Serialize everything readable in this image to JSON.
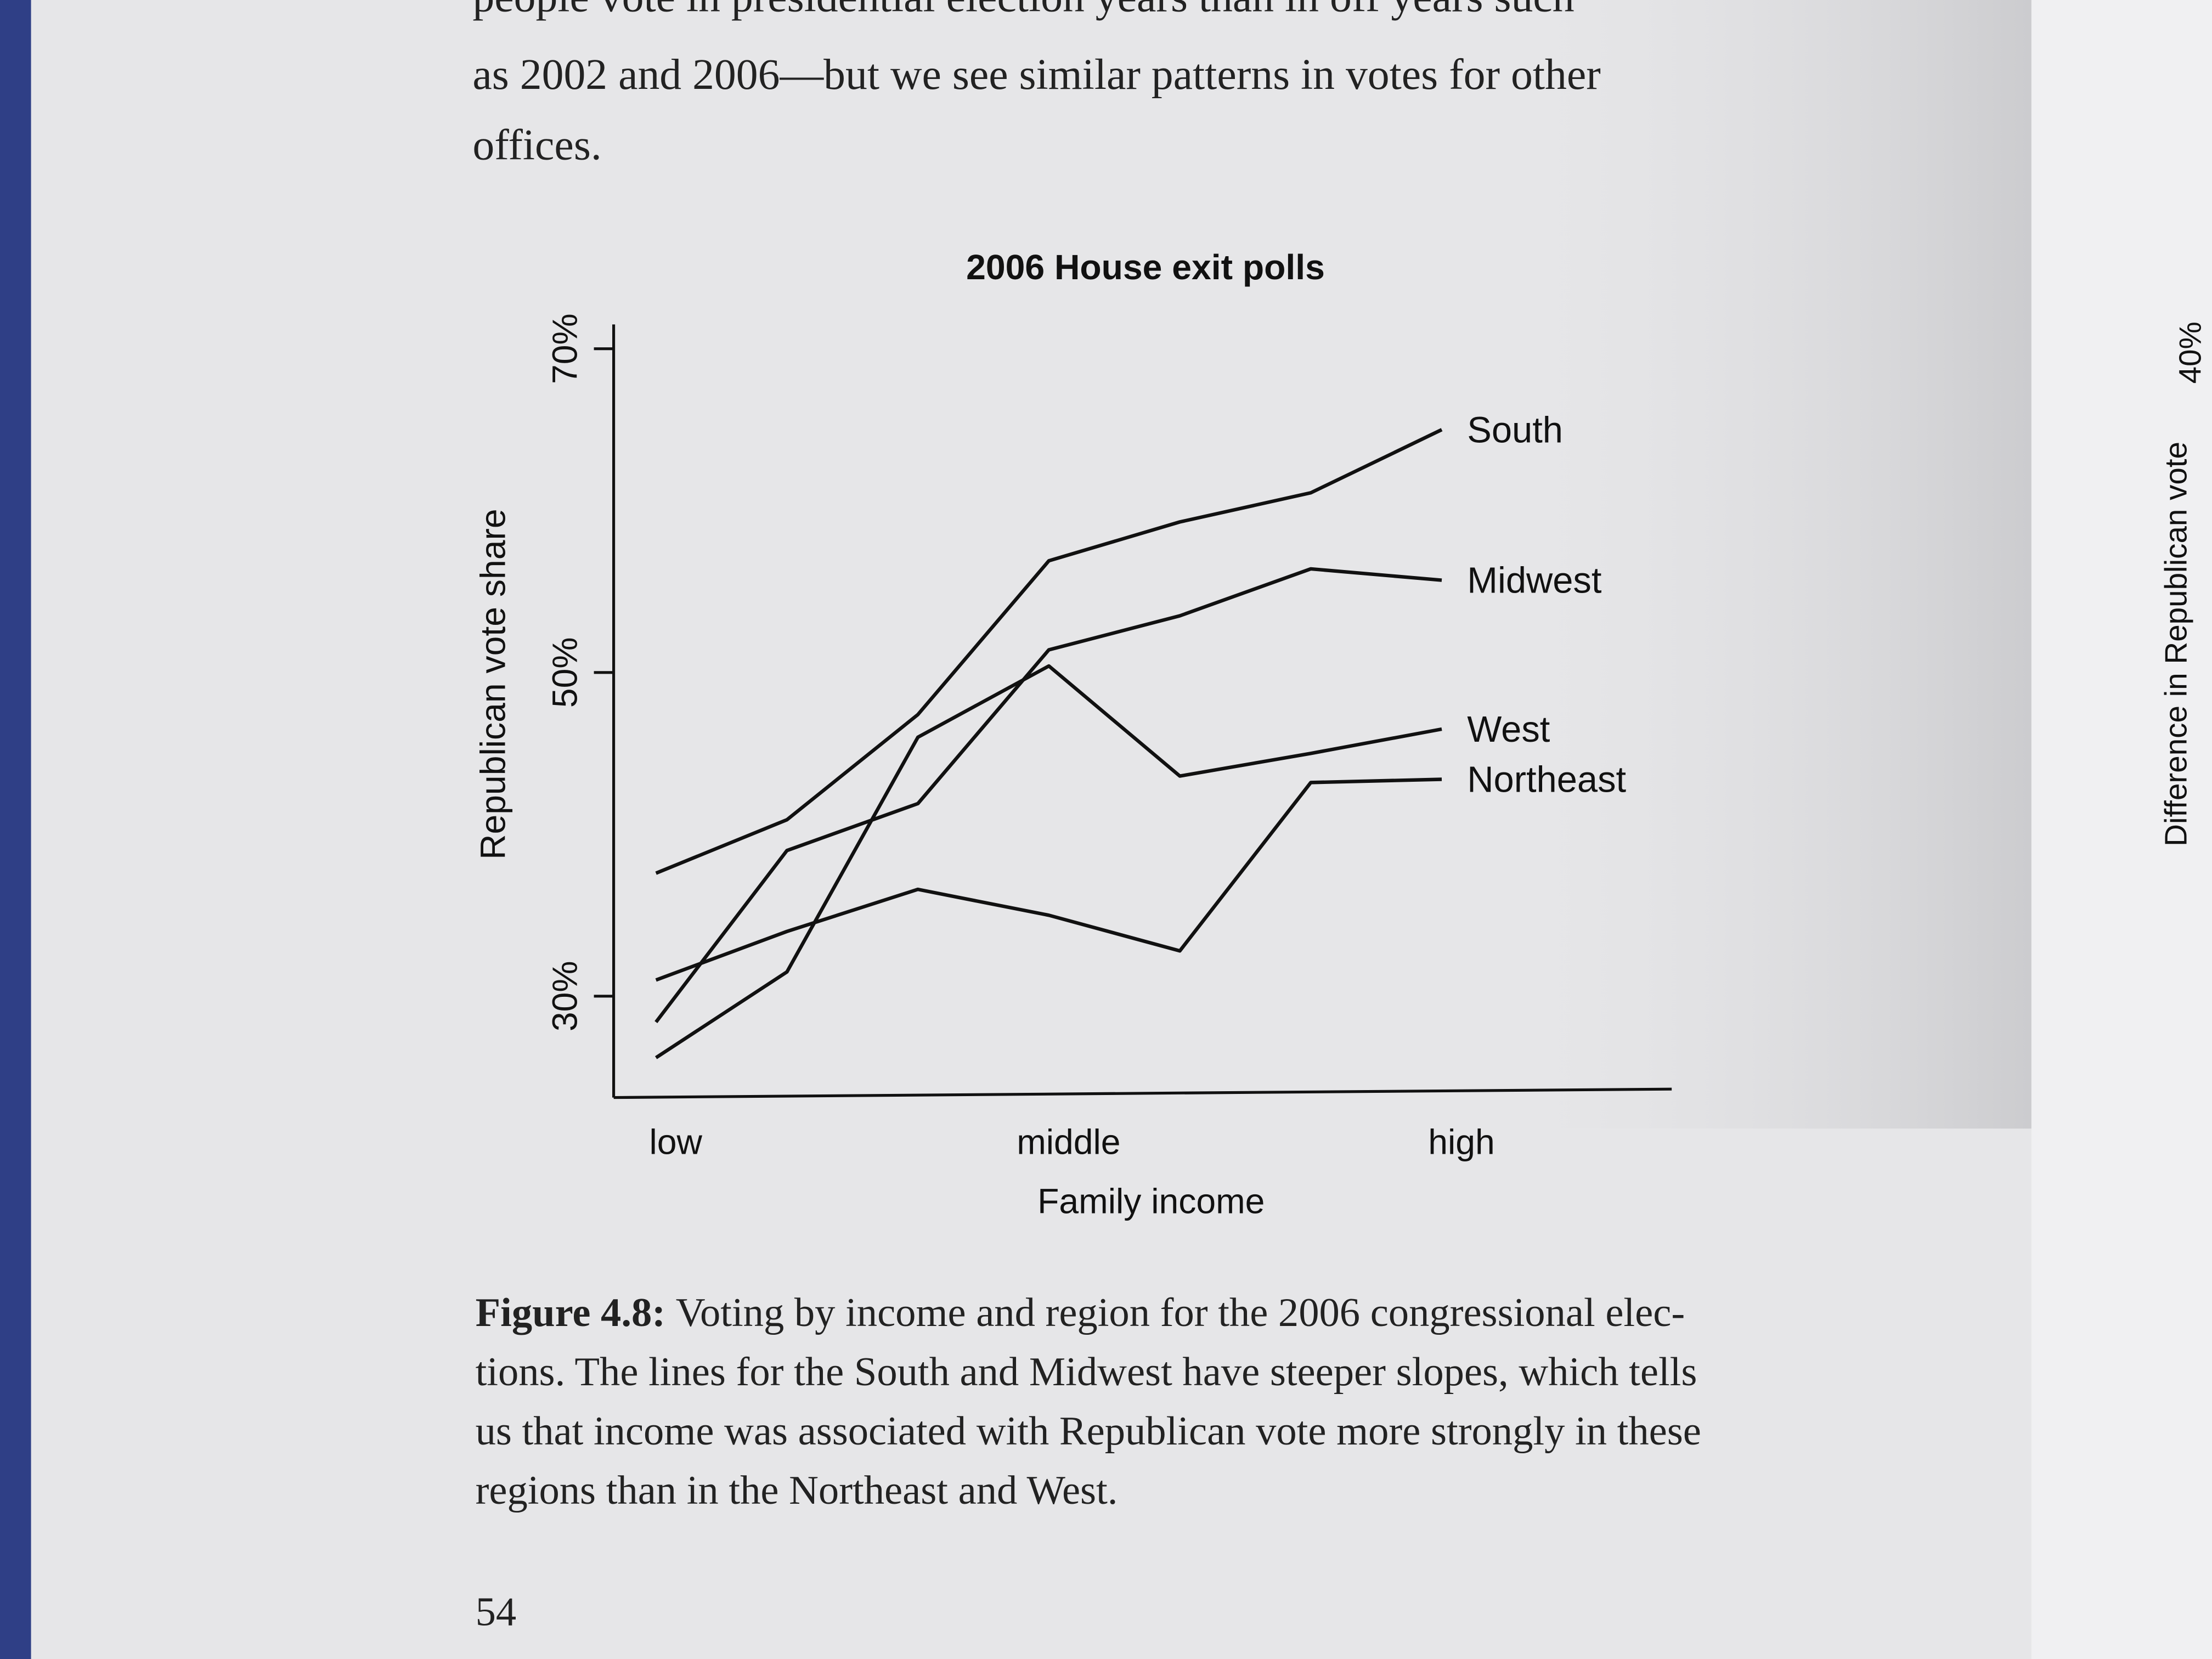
{
  "page": {
    "text_lines": [
      "people vote in presidential election years than in off years such",
      "as 2002 and 2006—but we see similar patterns in votes for other",
      "offices."
    ],
    "caption_label": "Figure 4.8:",
    "caption_lines": [
      "Voting by income and region for the 2006 congressional elec-",
      "tions. The lines for the South and Midwest have steeper slopes, which tells",
      "us that income was associated with Republican vote more strongly in these",
      "regions than in the Northeast and West."
    ],
    "page_number": "54",
    "facing_page": {
      "axis_label": "Difference in Republican vote",
      "tick": "40%"
    }
  },
  "chart_data": {
    "type": "line",
    "title": "2006 House exit polls",
    "x_label": "Family income",
    "y_label": "Republican vote share",
    "categories": [
      "low",
      null,
      null,
      "middle",
      null,
      null,
      "high"
    ],
    "series": [
      {
        "name": "South",
        "color": "#111111",
        "values": [
          37.6,
          40.9,
          47.4,
          56.9,
          59.3,
          61.1,
          65.0
        ]
      },
      {
        "name": "Midwest",
        "color": "#111111",
        "values": [
          28.4,
          39.0,
          41.9,
          51.4,
          53.5,
          56.4,
          55.7
        ]
      },
      {
        "name": "West",
        "color": "#111111",
        "values": [
          26.2,
          31.5,
          46.0,
          50.4,
          43.6,
          45.0,
          46.5
        ]
      },
      {
        "name": "Northeast",
        "color": "#111111",
        "values": [
          31.0,
          34.0,
          36.6,
          35.0,
          32.8,
          43.2,
          43.4
        ]
      }
    ],
    "ylim": [
      24,
      71.5
    ],
    "yticks": [
      {
        "value": 30,
        "label": "30%"
      },
      {
        "value": 50,
        "label": "50%"
      },
      {
        "value": 70,
        "label": "70%"
      }
    ]
  }
}
